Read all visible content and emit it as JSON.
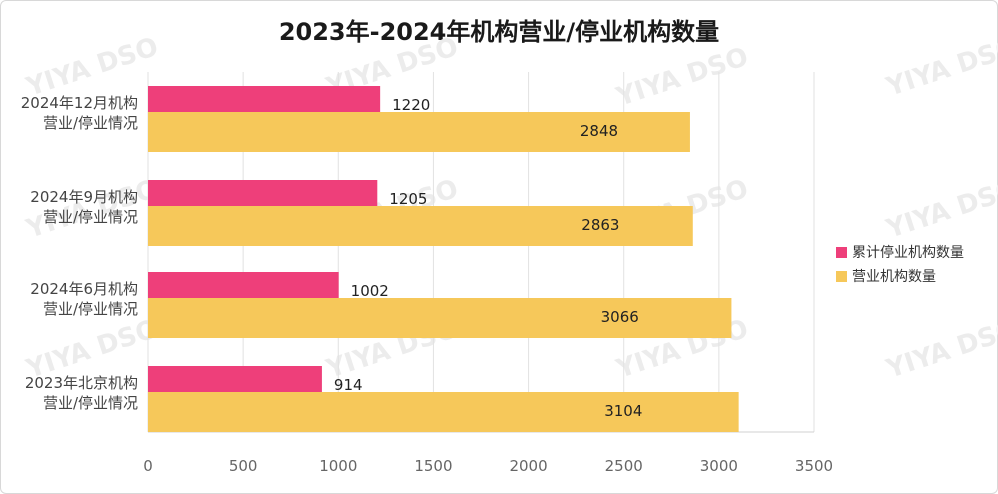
{
  "chart_data": {
    "type": "bar",
    "orientation": "horizontal",
    "title": "2023年-2024年机构营业/停业机构数量",
    "categories": [
      [
        "2024年12月机构",
        "营业/停业情况"
      ],
      [
        "2024年9月机构",
        "营业/停业情况"
      ],
      [
        "2024年6月机构",
        "营业/停业情况"
      ],
      [
        "2023年北京机构",
        "营业/停业情况"
      ]
    ],
    "series": [
      {
        "name": "累计停业机构数量",
        "values": [
          1220,
          1205,
          1002,
          914
        ],
        "color": "#ee3f7a"
      },
      {
        "name": "营业机构数量",
        "values": [
          2848,
          2863,
          3066,
          3104
        ],
        "color": "#f6c85a"
      }
    ],
    "x_ticks": [
      "0",
      "500",
      "1000",
      "1500",
      "2000",
      "2500",
      "3000",
      "3500"
    ],
    "xlim": [
      0,
      3500
    ],
    "grid": "vertical",
    "legend_position": "right",
    "watermark": "YIYA DSO"
  }
}
